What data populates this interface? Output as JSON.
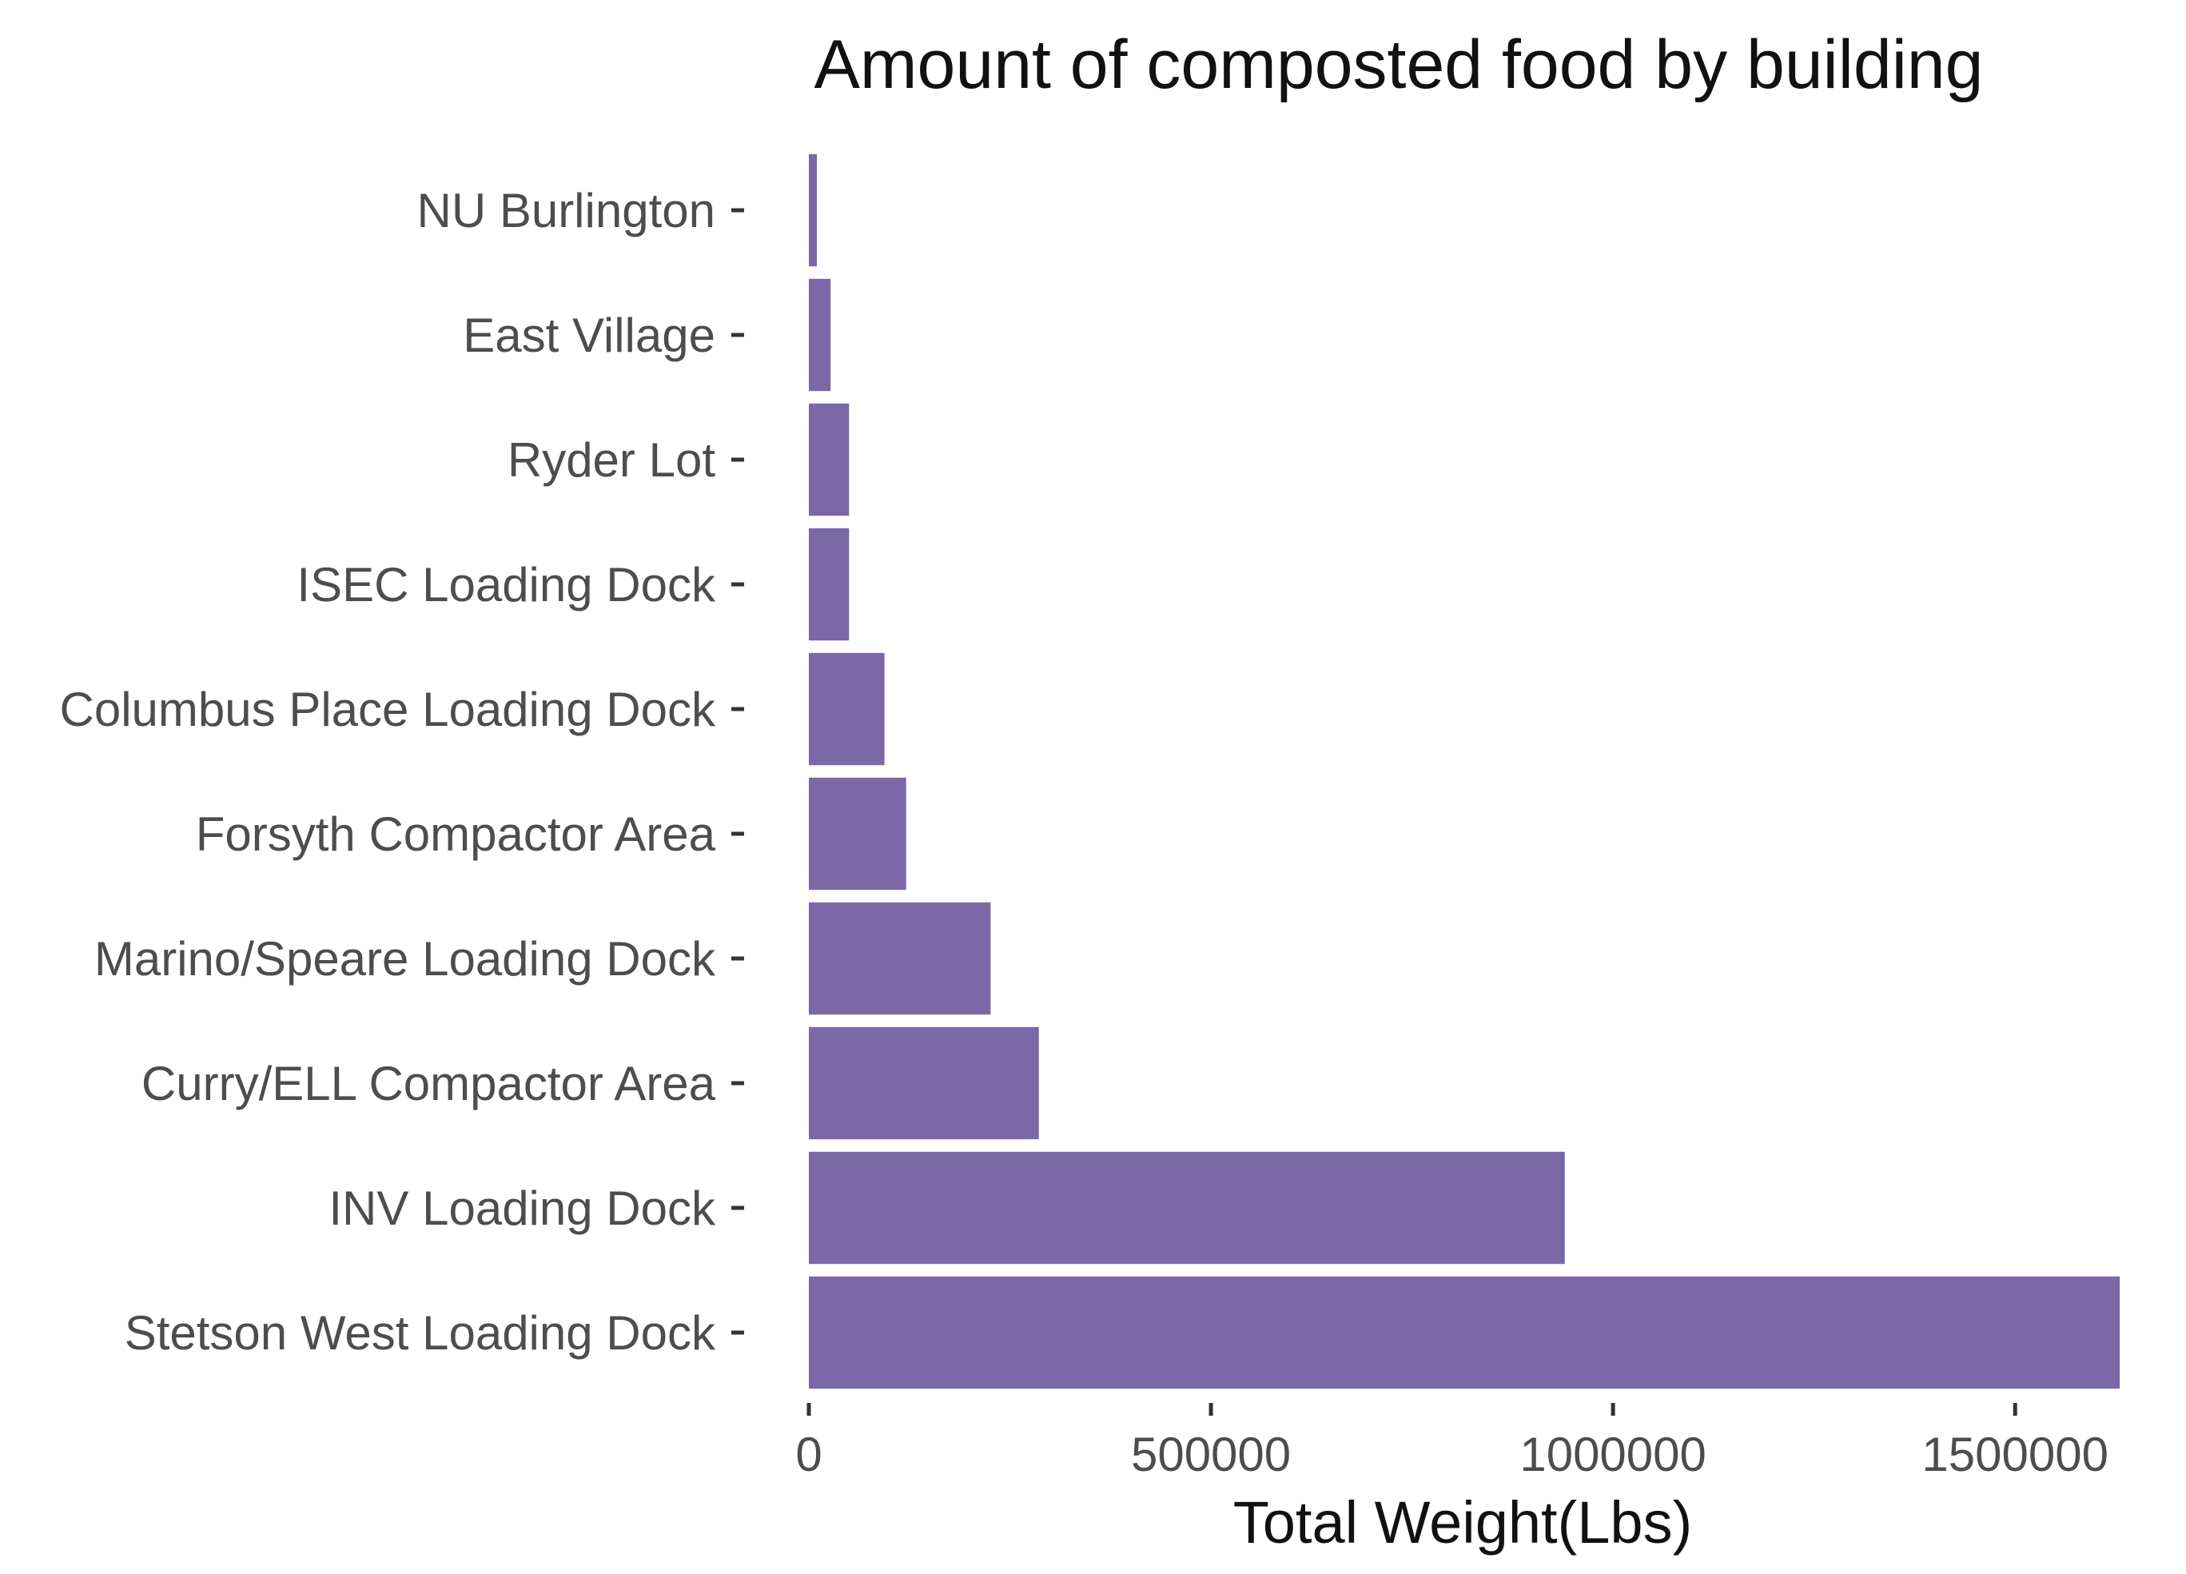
{
  "chart_data": {
    "type": "bar",
    "orientation": "horizontal",
    "title": "Amount of composted food by building",
    "xlabel": "Total Weight(Lbs)",
    "ylabel": "",
    "categories": [
      "NU Burlington",
      "East Village",
      "Ryder Lot",
      "ISEC Loading Dock",
      "Columbus Place Loading Dock",
      "Forsyth Compactor Area",
      "Marino/Speare Loading Dock",
      "Curry/ELL Compactor Area",
      "INV Loading Dock",
      "Stetson West Loading Dock"
    ],
    "values": [
      10000,
      27000,
      50000,
      50000,
      94000,
      121000,
      226000,
      286000,
      940000,
      1630000
    ],
    "xlim": [
      0,
      1630000
    ],
    "xticks": [
      0,
      500000,
      1000000,
      1500000
    ],
    "xtick_labels": [
      "0",
      "500000",
      "1000000",
      "1500000"
    ],
    "bar_color": "#7b68a6",
    "grid": false,
    "legend": "none"
  }
}
